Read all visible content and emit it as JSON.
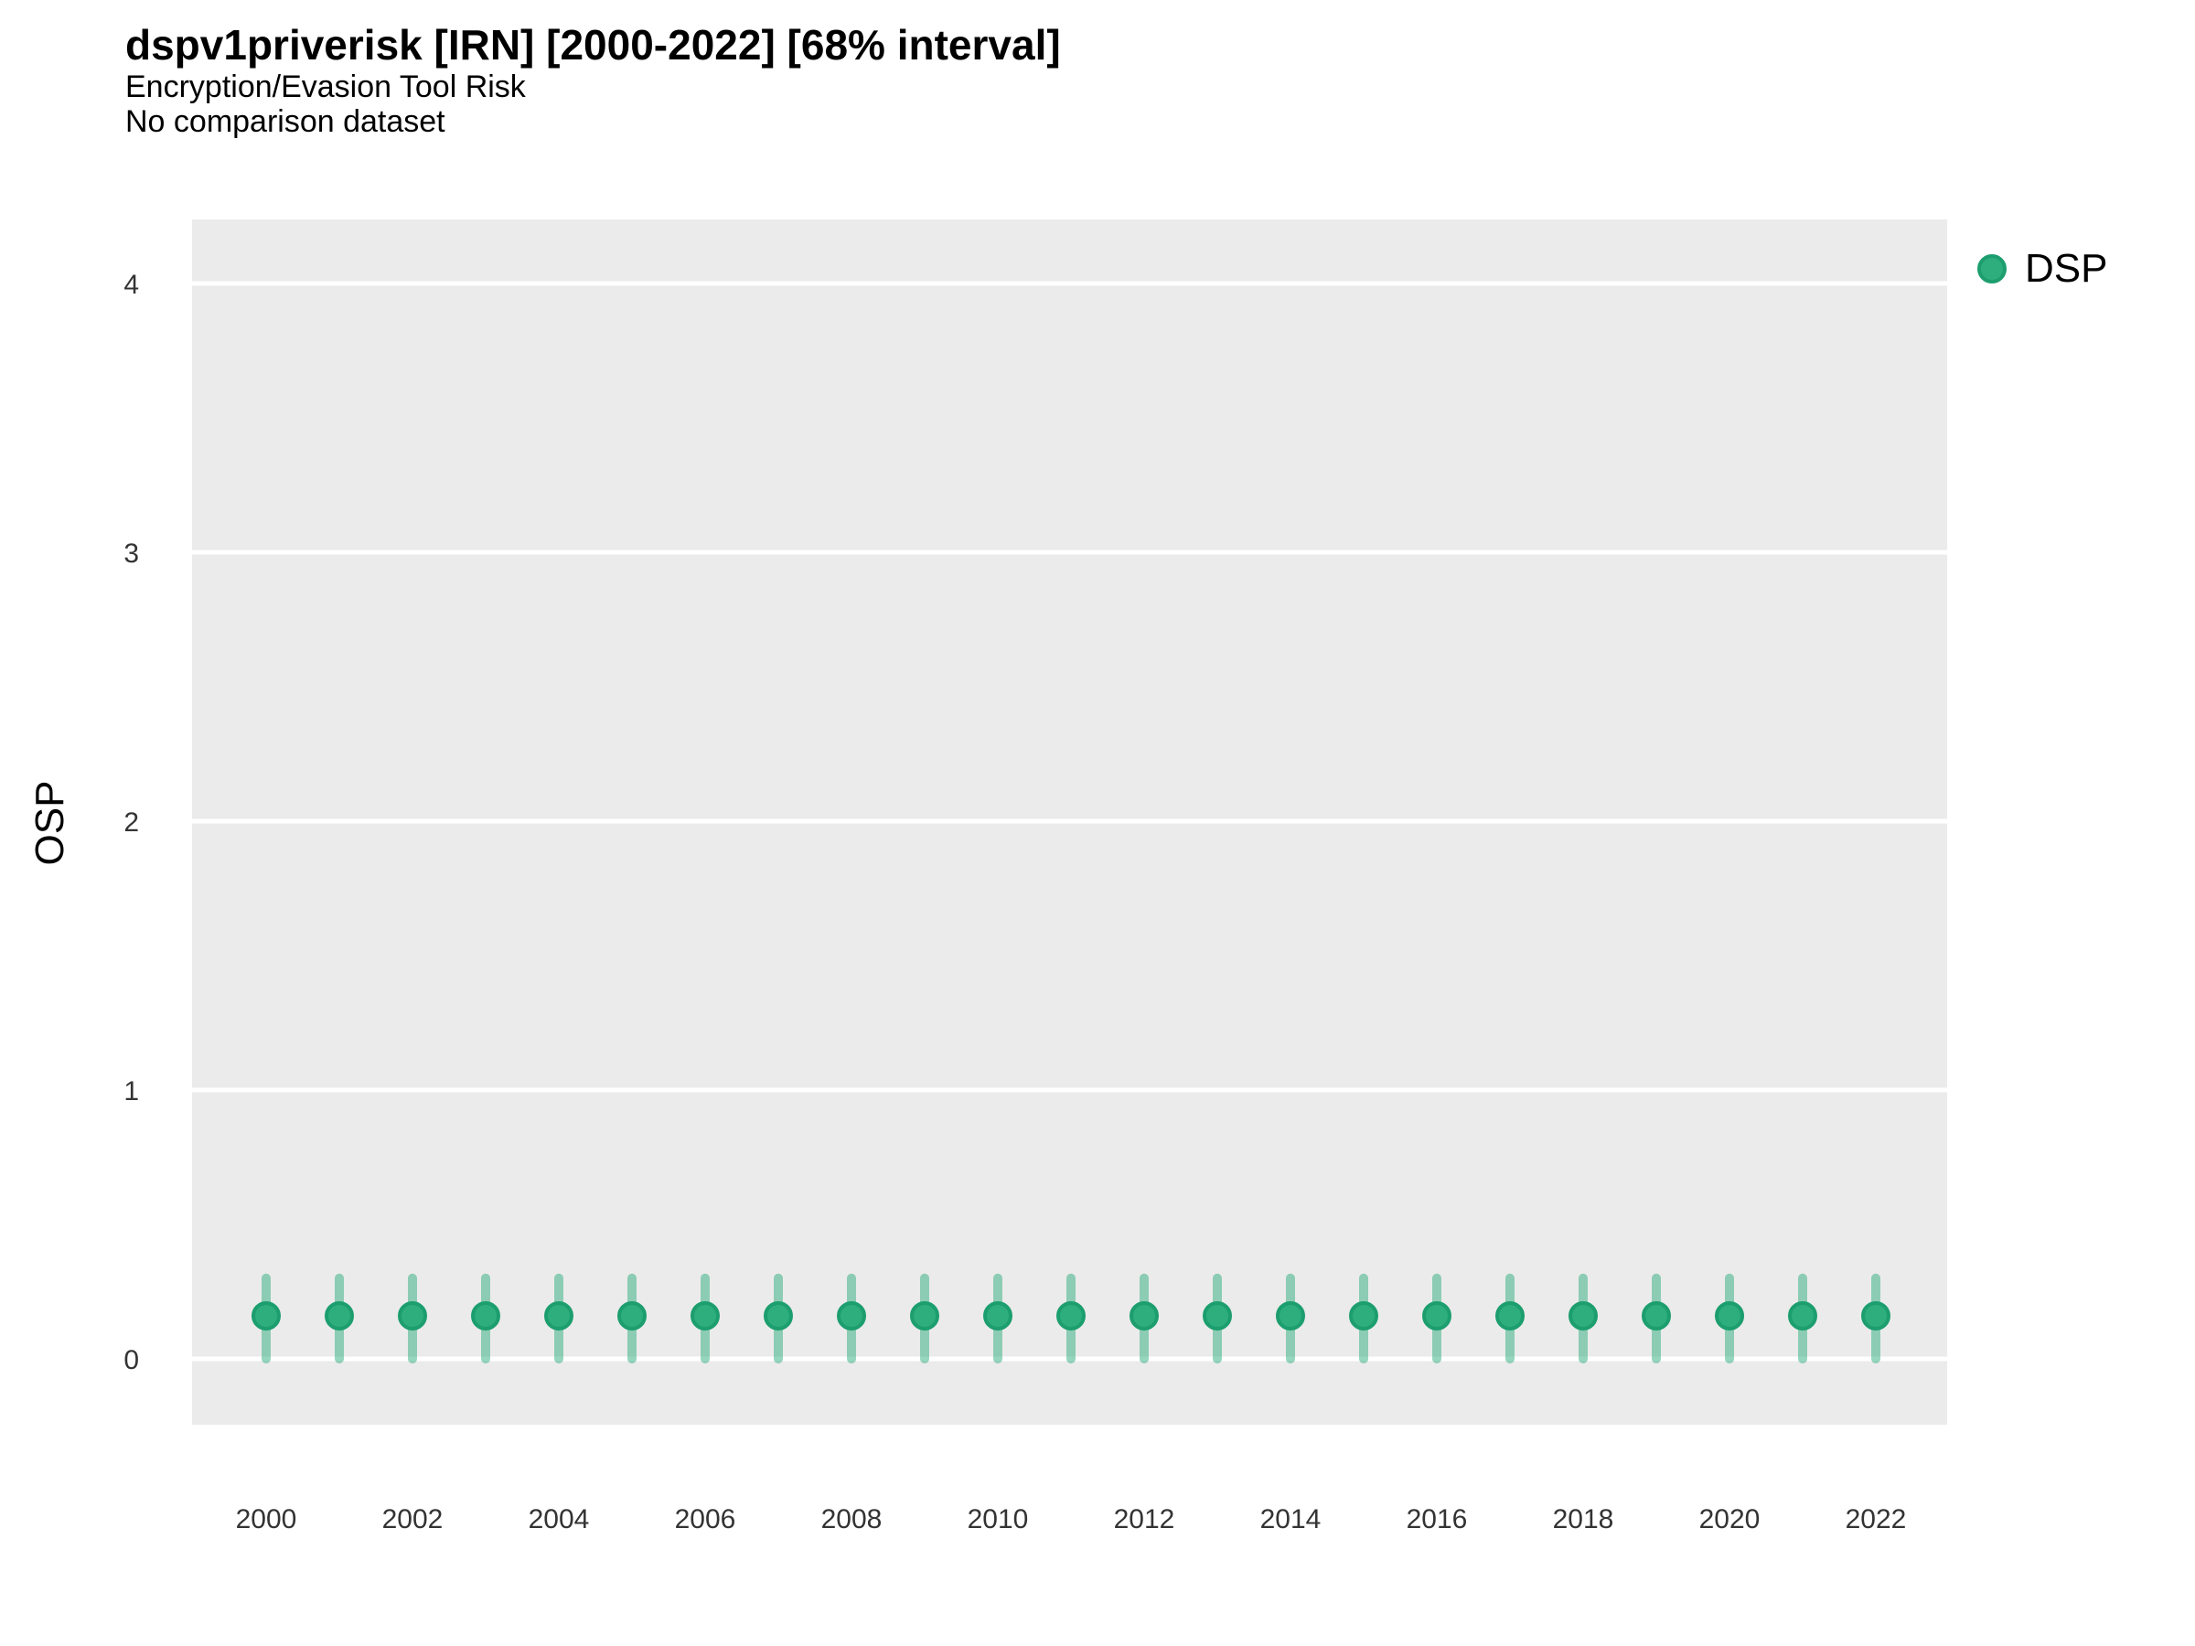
{
  "header": {
    "title": "dspv1priverisk [IRN] [2000-2022] [68% interval]",
    "subtitle": "Encryption/Evasion Tool Risk",
    "note": "No comparison dataset"
  },
  "chart_data": {
    "type": "scatter",
    "mark": "pointrange",
    "title": "dspv1priverisk [IRN] [2000-2022] [68% interval]",
    "subtitle": "Encryption/Evasion Tool Risk",
    "note": "No comparison dataset",
    "xlabel": "",
    "ylabel": "OSP",
    "x_ticks": [
      2000,
      2002,
      2004,
      2006,
      2008,
      2010,
      2012,
      2014,
      2016,
      2018,
      2020,
      2022
    ],
    "y_ticks": [
      0,
      1,
      2,
      3,
      4
    ],
    "xlim": [
      1999,
      2023
    ],
    "ylim": [
      -0.24,
      4.24
    ],
    "grid": "horizontal-major-only",
    "legend": {
      "label": "DSP",
      "position": "right-top"
    },
    "series": [
      {
        "name": "DSP",
        "x": [
          2000,
          2001,
          2002,
          2003,
          2004,
          2005,
          2006,
          2007,
          2008,
          2009,
          2010,
          2011,
          2012,
          2013,
          2014,
          2015,
          2016,
          2017,
          2018,
          2019,
          2020,
          2021,
          2022
        ],
        "estimate": [
          0.16,
          0.16,
          0.16,
          0.16,
          0.16,
          0.16,
          0.16,
          0.16,
          0.16,
          0.16,
          0.16,
          0.16,
          0.16,
          0.16,
          0.16,
          0.16,
          0.16,
          0.16,
          0.16,
          0.16,
          0.16,
          0.16,
          0.16
        ],
        "lower": [
          0.0,
          0.0,
          0.0,
          0.0,
          0.0,
          0.0,
          0.0,
          0.0,
          0.0,
          0.0,
          0.0,
          0.0,
          0.0,
          0.0,
          0.0,
          0.0,
          0.0,
          0.0,
          0.0,
          0.0,
          0.0,
          0.0,
          0.0
        ],
        "upper": [
          0.3,
          0.3,
          0.3,
          0.3,
          0.3,
          0.3,
          0.3,
          0.3,
          0.3,
          0.3,
          0.3,
          0.3,
          0.3,
          0.3,
          0.3,
          0.3,
          0.3,
          0.3,
          0.3,
          0.3,
          0.3,
          0.3,
          0.3
        ]
      }
    ],
    "colors": {
      "point_fill": "#2EAD7D",
      "point_stroke": "#1C9E6E",
      "interval": "rgba(46, 173, 125, 0.5)",
      "panel_background": "#EBEBEB",
      "gridline": "#FFFFFF",
      "axis_text": "#333333",
      "text": "#000000",
      "background": "#FFFFFF"
    }
  }
}
